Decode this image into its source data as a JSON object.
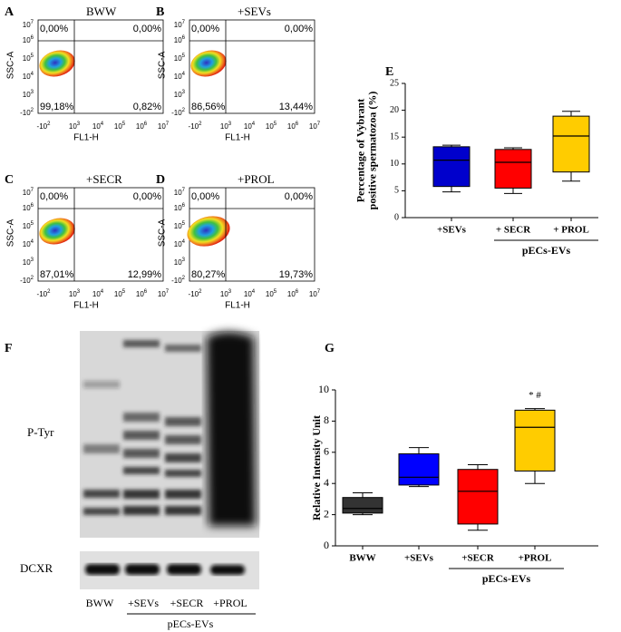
{
  "flow_panels": [
    {
      "letter": "A",
      "title": "BWW",
      "quadrants": [
        "0,00%",
        "0,00%",
        "99,18%",
        "0,82%"
      ]
    },
    {
      "letter": "B",
      "title": "+SEVs",
      "quadrants": [
        "0,00%",
        "0,00%",
        "86,56%",
        "13,44%"
      ]
    },
    {
      "letter": "C",
      "title": "+SECR",
      "quadrants": [
        "0,00%",
        "0,00%",
        "87,01%",
        "12,99%"
      ]
    },
    {
      "letter": "D",
      "title": "+PROL",
      "quadrants": [
        "0,00%",
        "0,00%",
        "80,27%",
        "19,73%"
      ]
    }
  ],
  "flow_axes": {
    "x_label": "FL1-H",
    "y_label": "SSC-A",
    "x_ticks": [
      {
        "base": "-10",
        "sup": "2"
      },
      {
        "base": "10",
        "sup": "3"
      },
      {
        "base": "10",
        "sup": "4"
      },
      {
        "base": "10",
        "sup": "5"
      },
      {
        "base": "10",
        "sup": "6"
      },
      {
        "base": "10",
        "sup": "7"
      }
    ],
    "y_ticks": [
      {
        "base": "10",
        "sup": "7"
      },
      {
        "base": "10",
        "sup": "6"
      },
      {
        "base": "10",
        "sup": "5"
      },
      {
        "base": "10",
        "sup": "4"
      },
      {
        "base": "10",
        "sup": "3"
      },
      {
        "base": "-10",
        "sup": "2"
      }
    ]
  },
  "blot": {
    "letter": "F",
    "bands": [
      "P-Tyr",
      "DCXR"
    ],
    "lanes": [
      "BWW",
      "+SEVs",
      "+SECR",
      "+PROL"
    ],
    "group_label": "pECs-EVs"
  },
  "chart_data": [
    {
      "type": "box",
      "letter": "E",
      "ylabel": [
        "Percentage of Vybrant",
        "positive spermatozoa (%)"
      ],
      "categories": [
        "+SEVs",
        "+ SECR",
        "+ PROL"
      ],
      "group_label": "pECs-EVs",
      "boxes": [
        {
          "min": 4.8,
          "q1": 5.8,
          "median": 10.7,
          "q3": 13.2,
          "max": 13.5,
          "color": "#0000cc"
        },
        {
          "min": 4.5,
          "q1": 5.5,
          "median": 10.3,
          "q3": 12.7,
          "max": 13.0,
          "color": "#ff0000"
        },
        {
          "min": 6.8,
          "q1": 8.5,
          "median": 15.2,
          "q3": 18.9,
          "max": 19.8,
          "color": "#ffcc00"
        }
      ],
      "ylim": [
        0,
        25
      ],
      "yticks": [
        0,
        5,
        10,
        15,
        20,
        25
      ]
    },
    {
      "type": "box",
      "letter": "G",
      "ylabel": [
        "Relative Intensity Unit"
      ],
      "categories": [
        "BWW",
        "+SEVs",
        "+SECR",
        "+PROL"
      ],
      "group_label": "pECs-EVs",
      "annotation": "* #",
      "boxes": [
        {
          "min": 2.0,
          "q1": 2.1,
          "median": 2.4,
          "q3": 3.1,
          "max": 3.4,
          "color": "#333333"
        },
        {
          "min": 3.8,
          "q1": 3.9,
          "median": 4.4,
          "q3": 5.9,
          "max": 6.3,
          "color": "#0000ff"
        },
        {
          "min": 1.0,
          "q1": 1.4,
          "median": 3.5,
          "q3": 4.9,
          "max": 5.2,
          "color": "#ff0000"
        },
        {
          "min": 4.0,
          "q1": 4.8,
          "median": 7.6,
          "q3": 8.7,
          "max": 8.8,
          "color": "#ffcc00"
        }
      ],
      "ylim": [
        0,
        10
      ],
      "yticks": [
        0,
        2,
        4,
        6,
        8,
        10
      ]
    }
  ]
}
